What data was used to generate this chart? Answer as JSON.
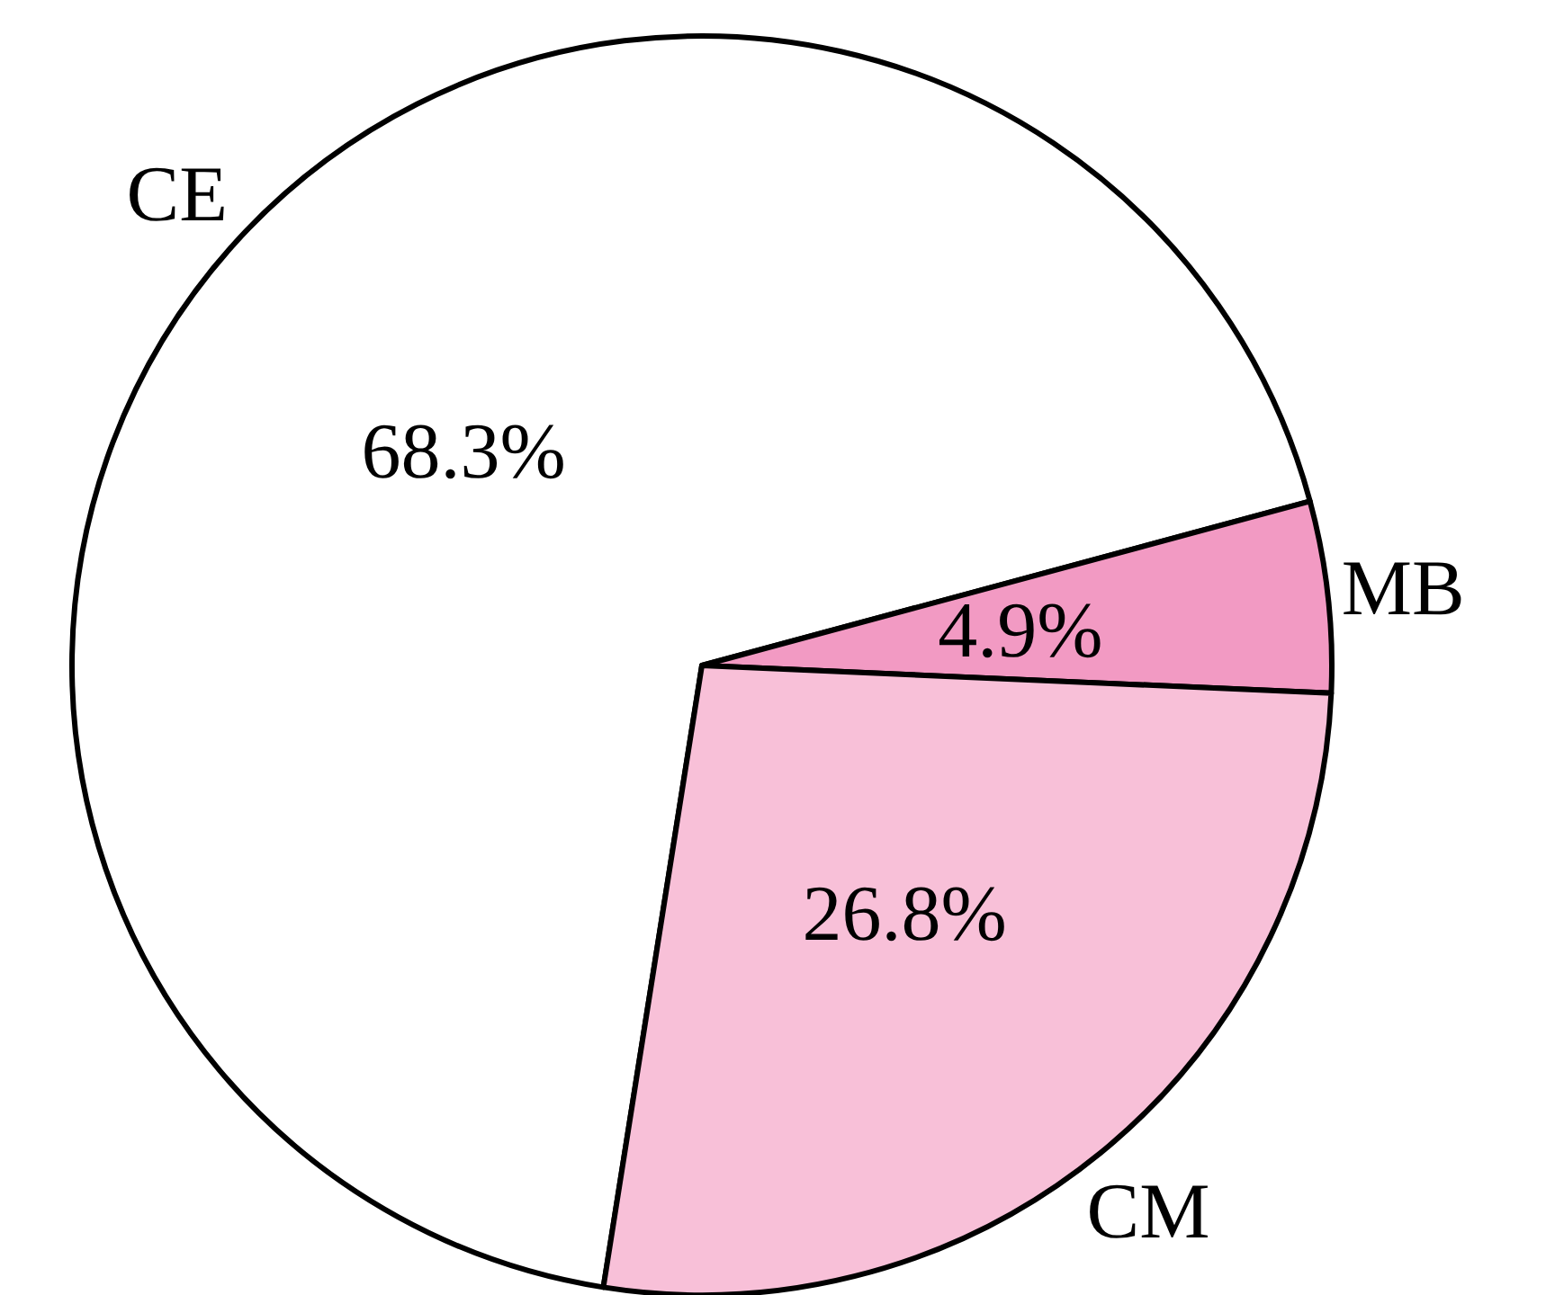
{
  "chart_data": {
    "type": "pie",
    "categories": [
      "CE",
      "MB",
      "CM"
    ],
    "values": [
      68.3,
      4.9,
      26.8
    ],
    "colors": [
      "#ffffff",
      "#f29ac3",
      "#f8c0d8"
    ],
    "value_labels": [
      "68.3%",
      "4.9%",
      "26.8%"
    ],
    "legend": false
  }
}
